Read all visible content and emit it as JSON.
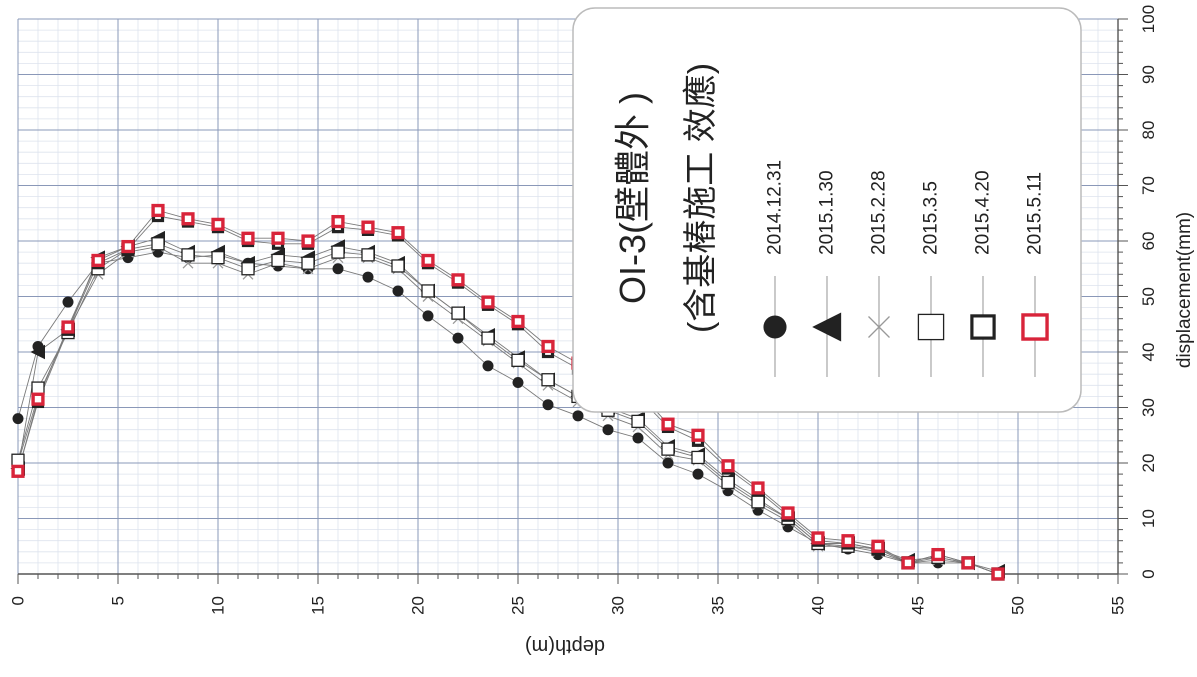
{
  "chart_data": {
    "type": "scatter",
    "title": "OI-3(壁體外 )",
    "subtitle": "(含基樁施工 效應)",
    "xlabel": "depth(m)",
    "ylabel": "displacement(mm)",
    "xlim": [
      0,
      55
    ],
    "ylim": [
      0,
      100
    ],
    "x_ticks": [
      0,
      5,
      10,
      15,
      20,
      25,
      30,
      35,
      40,
      45,
      50,
      55
    ],
    "y_ticks": [
      0,
      10,
      20,
      30,
      40,
      50,
      60,
      70,
      80,
      90,
      100
    ],
    "grid": true,
    "legend_position": "top-right",
    "series": [
      {
        "name": "2014.12.31",
        "marker": "filled-circle",
        "color": "#222222",
        "x": [
          0,
          1,
          2.5,
          4,
          5.5,
          7,
          8.5,
          10,
          11.5,
          13,
          14.5,
          16,
          17.5,
          19,
          20.5,
          22,
          23.5,
          25,
          26.5,
          28,
          29.5,
          31,
          32.5,
          34,
          35.5,
          37,
          38.5,
          40,
          41.5,
          43,
          44.5,
          46,
          47.5,
          49
        ],
        "y": [
          28,
          41,
          49,
          56,
          57,
          58,
          57,
          57.5,
          56,
          55.5,
          55,
          55,
          53.5,
          51,
          46.5,
          42.5,
          37.5,
          34.5,
          30.5,
          28.5,
          26,
          24.5,
          20,
          18,
          15,
          11.5,
          8.5,
          5.5,
          4.5,
          3.5,
          2,
          2,
          2,
          0
        ]
      },
      {
        "name": "2015.1.30",
        "marker": "filled-triangle",
        "color": "#222222",
        "x": [
          0,
          1,
          2.5,
          4,
          5.5,
          7,
          8.5,
          10,
          11.5,
          13,
          14.5,
          16,
          17.5,
          19,
          20.5,
          22,
          23.5,
          25,
          26.5,
          28,
          29.5,
          31,
          32.5,
          34,
          35.5,
          37,
          38.5,
          40,
          41.5,
          43,
          44.5,
          46,
          47.5,
          49
        ],
        "y": [
          19,
          40,
          44,
          57,
          59,
          60.5,
          58,
          58,
          56,
          57.5,
          57,
          59,
          58,
          56,
          51,
          47,
          43,
          39,
          35,
          32,
          30,
          28,
          23,
          21.5,
          17,
          13.5,
          10,
          5.5,
          5.5,
          4.5,
          2.5,
          3,
          2,
          0.5
        ]
      },
      {
        "name": "2015.2.28",
        "marker": "x",
        "color": "#999999",
        "x": [
          0,
          1,
          2.5,
          4,
          5.5,
          7,
          8.5,
          10,
          11.5,
          13,
          14.5,
          16,
          17.5,
          19,
          20.5,
          22,
          23.5,
          25,
          26.5,
          28,
          29.5,
          31,
          32.5,
          34,
          35.5,
          37,
          38.5,
          40,
          41.5,
          43,
          44.5,
          46,
          47.5,
          49
        ],
        "y": [
          20,
          32,
          44,
          54,
          58,
          59,
          56,
          56,
          54,
          56,
          55,
          57,
          57,
          55,
          50,
          46,
          42,
          38,
          34,
          31,
          28.5,
          26.5,
          21.5,
          20.5,
          16,
          12.5,
          9.5,
          5,
          5,
          4,
          2,
          2.5,
          2,
          0
        ]
      },
      {
        "name": "2015.3.5",
        "marker": "open-square",
        "color": "#222222",
        "x": [
          0,
          1,
          2.5,
          4,
          5.5,
          7,
          8.5,
          10,
          11.5,
          13,
          14.5,
          16,
          17.5,
          19,
          20.5,
          22,
          23.5,
          25,
          26.5,
          28,
          29.5,
          31,
          32.5,
          34,
          35.5,
          37,
          38.5,
          40,
          41.5,
          43,
          44.5,
          46,
          47.5,
          49
        ],
        "y": [
          20.5,
          33.5,
          43.5,
          55,
          58.5,
          59.5,
          57.5,
          57,
          55,
          56.5,
          56,
          58,
          57.5,
          55.5,
          51,
          47,
          42.5,
          38.5,
          35,
          32,
          29.5,
          27.5,
          22.5,
          21,
          16.5,
          13,
          10,
          5.5,
          5,
          4.5,
          2,
          3,
          2,
          0
        ]
      },
      {
        "name": "2015.4.20",
        "marker": "bold-square",
        "color": "#222222",
        "x": [
          0,
          1,
          2.5,
          4,
          5.5,
          7,
          8.5,
          10,
          11.5,
          13,
          14.5,
          16,
          17.5,
          19,
          20.5,
          22,
          23.5,
          25,
          26.5,
          28,
          29.5,
          31,
          32.5,
          34,
          35.5,
          37,
          38.5,
          40,
          41.5,
          43,
          44.5,
          46,
          47.5,
          49
        ],
        "y": [
          18.5,
          31,
          44,
          56,
          58.5,
          64.5,
          63.5,
          62.5,
          60,
          59.5,
          59.5,
          62.5,
          62,
          61,
          56,
          52.5,
          48.5,
          45,
          40,
          37,
          34,
          32,
          26.5,
          24,
          19,
          15,
          10.5,
          6,
          5.5,
          4.5,
          2,
          3.5,
          2,
          0
        ]
      },
      {
        "name": "2015.5.11",
        "marker": "red-square",
        "color": "#d8243a",
        "x": [
          0,
          1,
          2.5,
          4,
          5.5,
          7,
          8.5,
          10,
          11.5,
          13,
          14.5,
          16,
          17.5,
          19,
          20.5,
          22,
          23.5,
          25,
          26.5,
          28,
          29.5,
          31,
          32.5,
          34,
          35.5,
          37,
          38.5,
          40,
          41.5,
          43,
          44.5,
          46,
          47.5,
          49
        ],
        "y": [
          18.5,
          31.5,
          44.5,
          56.5,
          59,
          65.5,
          64,
          63,
          60.5,
          60.5,
          60,
          63.5,
          62.5,
          61.5,
          56.5,
          53,
          49,
          45.5,
          41,
          38,
          35,
          33,
          27,
          25,
          19.5,
          15.5,
          11,
          6.5,
          6,
          5,
          2,
          3.5,
          2,
          0
        ]
      }
    ]
  }
}
